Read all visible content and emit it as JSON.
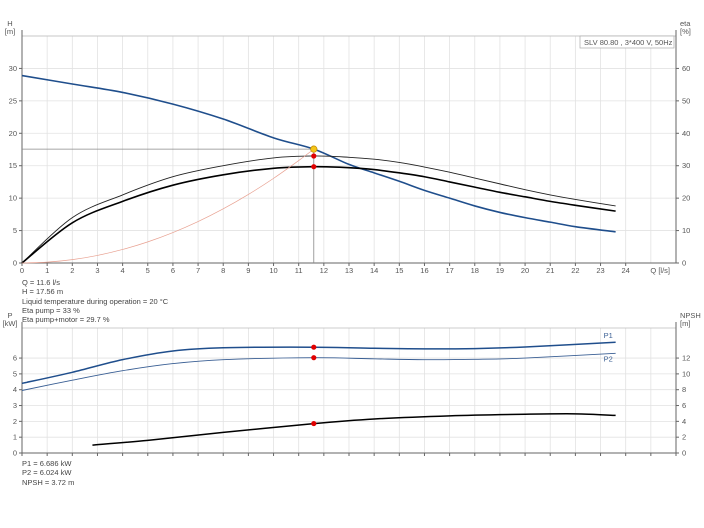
{
  "chart_data": [
    {
      "type": "line",
      "legend_box": "SLV 80.80 , 3*400 V, 50Hz",
      "xlabel": "Q [l/s]",
      "ylabel_left": [
        "H",
        "[m]"
      ],
      "ylabel_right": [
        "eta",
        "[%]"
      ],
      "xlim": [
        0,
        26
      ],
      "ylim_left": [
        0,
        35
      ],
      "ylim_right": [
        0,
        70
      ],
      "xticks": [
        0,
        1,
        2,
        3,
        4,
        5,
        6,
        7,
        8,
        9,
        10,
        11,
        12,
        13,
        14,
        15,
        16,
        17,
        18,
        19,
        20,
        21,
        22,
        23,
        24
      ],
      "yticks_left": [
        0,
        5,
        10,
        15,
        20,
        25,
        30
      ],
      "yticks_right": [
        0,
        10,
        20,
        30,
        40,
        50,
        60
      ],
      "grid": true,
      "colors": {
        "head": "#1f4e8c",
        "eta": "#000000",
        "system": "#e8a090",
        "duty_point": "#f5c518",
        "marker": "#e00000"
      },
      "series": [
        {
          "id": "H",
          "axis": "left",
          "x": [
            0,
            2,
            4,
            6,
            8,
            10,
            11.6,
            13,
            14,
            15,
            16,
            17,
            18,
            19,
            20,
            21,
            22,
            23.6
          ],
          "y": [
            28.9,
            27.6,
            26.3,
            24.5,
            22.2,
            19.3,
            17.56,
            15.2,
            13.9,
            12.6,
            11.2,
            10,
            8.8,
            7.8,
            7,
            6.3,
            5.6,
            4.8
          ]
        },
        {
          "id": "eta_pump",
          "axis": "right",
          "x": [
            0,
            2,
            4,
            6,
            8,
            10,
            11.6,
            13,
            14,
            15,
            16,
            17,
            18,
            19,
            20,
            21,
            22,
            23.6
          ],
          "y": [
            0,
            14,
            21,
            26.6,
            30,
            32.4,
            33,
            32.6,
            32,
            31,
            29.6,
            28,
            26.2,
            24.4,
            22.6,
            21,
            19.6,
            17.6
          ]
        },
        {
          "id": "eta_pump_motor",
          "axis": "right",
          "x": [
            0,
            2,
            4,
            6,
            8,
            10,
            11.6,
            13,
            14,
            15,
            16,
            17,
            18,
            19,
            20,
            21,
            22,
            23.6
          ],
          "y": [
            0,
            12.4,
            19,
            24,
            27.2,
            29.2,
            29.7,
            29.4,
            28.8,
            27.8,
            26.6,
            25,
            23.4,
            21.8,
            20.4,
            19,
            17.8,
            16
          ]
        },
        {
          "id": "system",
          "axis": "left",
          "x": [
            0,
            1,
            2,
            3,
            4,
            5,
            6,
            7,
            8,
            9,
            10,
            11,
            11.6
          ],
          "y": [
            0,
            0.13,
            0.52,
            1.17,
            2.09,
            3.26,
            4.7,
            6.39,
            8.35,
            10.57,
            13.05,
            15.79,
            17.56
          ]
        }
      ],
      "duty_point": {
        "Q": 11.6,
        "H": 17.56,
        "eta_pump": 33,
        "eta_pump_motor": 29.7
      }
    },
    {
      "type": "line",
      "ylabel_left": [
        "P",
        "[kW]"
      ],
      "ylabel_right": [
        "NPSH",
        "[m]"
      ],
      "xlim": [
        0,
        26
      ],
      "ylim_left": [
        0,
        7.9
      ],
      "ylim_right": [
        0,
        15.8
      ],
      "yticks_left": [
        0,
        1,
        2,
        3,
        4,
        5,
        6
      ],
      "yticks_right": [
        0,
        2,
        4,
        6,
        8,
        10,
        12
      ],
      "grid": true,
      "series": [
        {
          "id": "P1",
          "name": "P1",
          "axis": "left",
          "x": [
            0,
            2,
            4,
            6,
            8,
            11.6,
            14,
            16,
            18,
            20,
            23.6
          ],
          "y": [
            4.4,
            5.1,
            5.9,
            6.45,
            6.65,
            6.686,
            6.62,
            6.58,
            6.6,
            6.7,
            7.0
          ]
        },
        {
          "id": "P2",
          "name": "P2",
          "axis": "left",
          "x": [
            0,
            2,
            4,
            6,
            8,
            11.6,
            14,
            16,
            18,
            20,
            23.6
          ],
          "y": [
            3.95,
            4.6,
            5.2,
            5.65,
            5.9,
            6.024,
            5.95,
            5.9,
            5.92,
            6.0,
            6.3
          ]
        },
        {
          "id": "NPSH",
          "axis": "right",
          "x": [
            2.8,
            5,
            8,
            11.6,
            14,
            17,
            20,
            22,
            23.6
          ],
          "y": [
            1.0,
            1.6,
            2.6,
            3.72,
            4.3,
            4.7,
            4.9,
            4.95,
            4.75
          ]
        }
      ],
      "duty_point": {
        "Q": 11.6,
        "P1": 6.686,
        "P2": 6.024,
        "NPSH": 3.72
      }
    }
  ],
  "info_top": [
    "Q = 11.6 l/s",
    "H = 17.56 m",
    "Liquid temperature during operation = 20 °C",
    "Eta pump = 33 %",
    "Eta pump+motor = 29.7 %"
  ],
  "info_bottom": [
    "P1 = 6.686 kW",
    "P2 = 6.024 kW",
    "NPSH = 3.72 m"
  ]
}
